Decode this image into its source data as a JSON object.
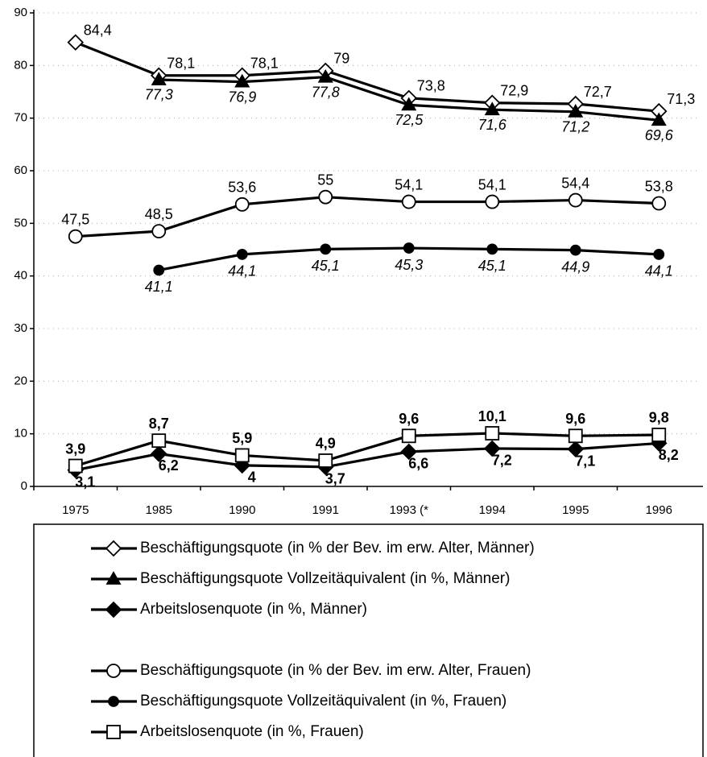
{
  "chart_data": {
    "type": "line",
    "categories": [
      "1975",
      "1985",
      "1990",
      "1991",
      "1993 (*",
      "1994",
      "1995",
      "1996"
    ],
    "ylim": [
      0,
      90
    ],
    "yticks": [
      0,
      10,
      20,
      30,
      40,
      50,
      60,
      70,
      80,
      90
    ],
    "grid": true,
    "series": [
      {
        "name": "Beschäftigungsquote (in % der Bev. im erw. Alter, Männer)",
        "color": "#000000",
        "marker": "diamond",
        "filled": false,
        "values": [
          84.4,
          78.1,
          78.1,
          79,
          73.8,
          72.9,
          72.7,
          71.3
        ],
        "value_labels": [
          "84,4",
          "78,1",
          "78,1",
          "79",
          "73,8",
          "72,9",
          "72,7",
          "71,3"
        ]
      },
      {
        "name": "Beschäftigungsquote Vollzeitäquivalent (in %, Männer)",
        "color": "#000000",
        "marker": "triangle",
        "filled": true,
        "values": [
          null,
          77.3,
          76.9,
          77.8,
          72.5,
          71.6,
          71.2,
          69.6
        ],
        "value_labels": [
          null,
          "77,3",
          "76,9",
          "77,8",
          "72,5",
          "71,6",
          "71,2",
          "69,6"
        ]
      },
      {
        "name": "Arbeitslosenquote (in %, Männer)",
        "color": "#000000",
        "marker": "diamond",
        "filled": true,
        "values": [
          3.1,
          6.2,
          4,
          3.7,
          6.6,
          7.2,
          7.1,
          8.2
        ],
        "value_labels": [
          "3,1",
          "6,2",
          "4",
          "3,7",
          "6,6",
          "7,2",
          "7,1",
          "8,2"
        ]
      },
      {
        "name": "Beschäftigungsquote (in % der Bev. im erw. Alter, Frauen)",
        "color": "#000000",
        "marker": "circle",
        "filled": false,
        "values": [
          47.5,
          48.5,
          53.6,
          55,
          54.1,
          54.1,
          54.4,
          53.8
        ],
        "value_labels": [
          "47,5",
          "48,5",
          "53,6",
          "55",
          "54,1",
          "54,1",
          "54,4",
          "53,8"
        ]
      },
      {
        "name": "Beschäftigungsquote Vollzeitäquivalent (in %, Frauen)",
        "color": "#000000",
        "marker": "circle",
        "filled": true,
        "values": [
          null,
          41.1,
          44.1,
          45.1,
          45.3,
          45.1,
          44.9,
          44.1
        ],
        "value_labels": [
          null,
          "41,1",
          "44,1",
          "45,1",
          "45,3",
          "45,1",
          "44,9",
          "44,1"
        ]
      },
      {
        "name": "Arbeitslosenquote (in %, Frauen)",
        "color": "#000000",
        "marker": "square",
        "filled": false,
        "values": [
          3.9,
          8.7,
          5.9,
          4.9,
          9.6,
          10.1,
          9.6,
          9.8
        ],
        "value_labels": [
          "3,9",
          "8,7",
          "5,9",
          "4,9",
          "9,6",
          "10,1",
          "9,6",
          "9,8"
        ]
      }
    ]
  }
}
